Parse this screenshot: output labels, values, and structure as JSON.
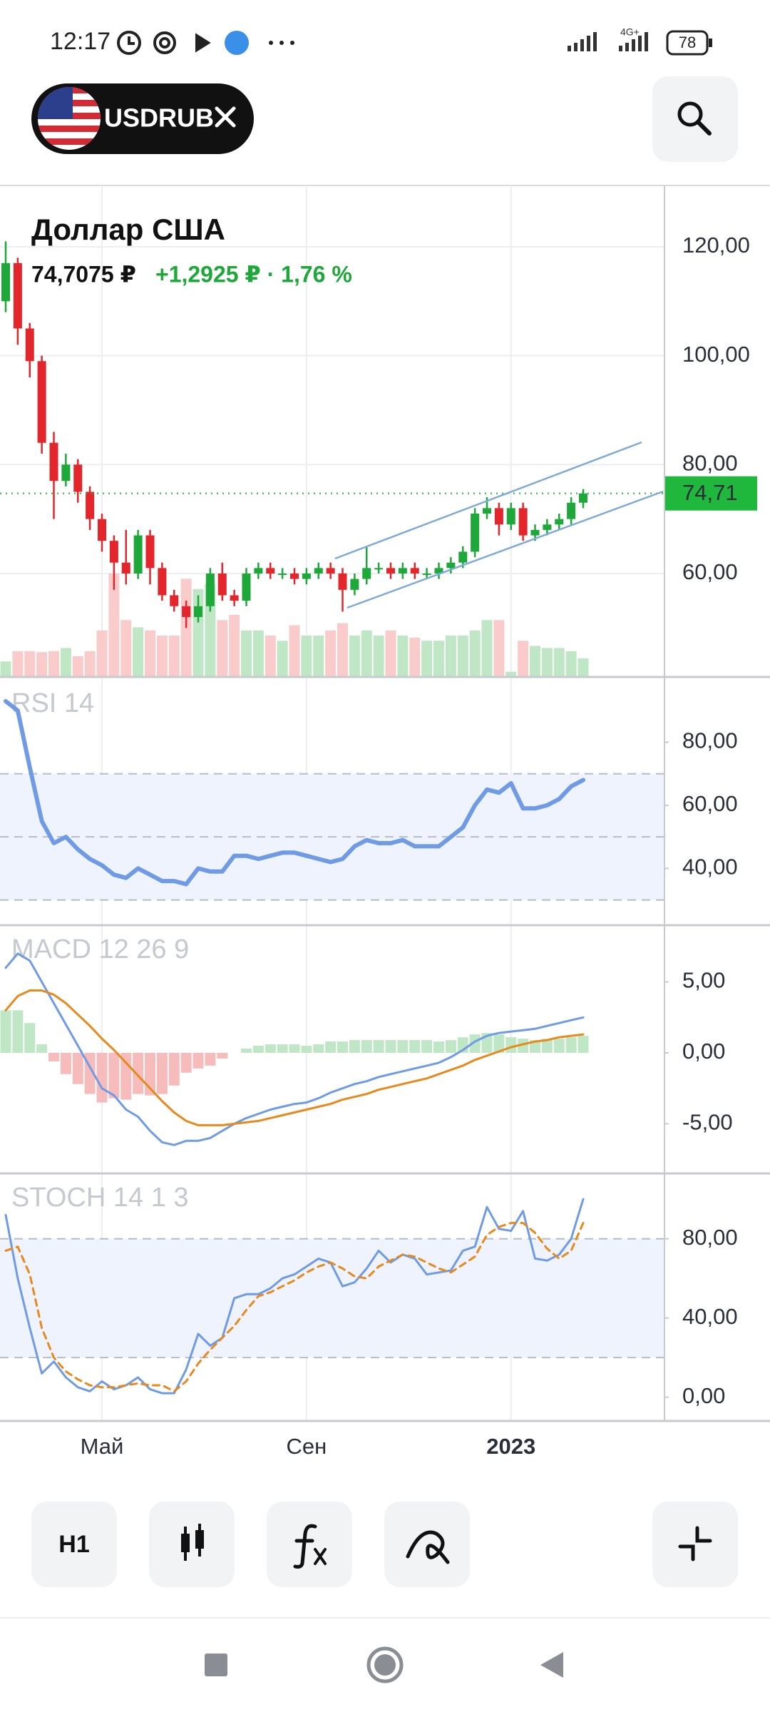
{
  "status_bar": {
    "time": "12:17",
    "network": "4G+",
    "battery": "78"
  },
  "symbol": "USDRUB",
  "instrument": {
    "name": "Доллар США",
    "price": "74,7075 ₽",
    "change": "+1,2925 ₽ · 1,76 %"
  },
  "toolbar": {
    "interval": "H1"
  },
  "chart_data": [
    {
      "type": "candlestick",
      "categories": [
        null,
        null,
        null,
        null,
        null,
        null,
        null,
        null,
        "Май",
        null,
        null,
        null,
        null,
        null,
        null,
        null,
        null,
        null,
        null,
        null,
        null,
        null,
        null,
        null,
        null,
        "Сен",
        null,
        null,
        null,
        null,
        null,
        null,
        null,
        null,
        null,
        null,
        null,
        null,
        null,
        null,
        null,
        null,
        "2023",
        null,
        null,
        null,
        null,
        null,
        null
      ],
      "ohlc": [
        [
          110,
          121,
          108,
          117
        ],
        [
          117,
          118,
          102,
          105
        ],
        [
          105,
          106,
          96,
          99
        ],
        [
          99,
          100,
          82,
          84
        ],
        [
          84,
          86,
          70,
          77
        ],
        [
          77,
          82,
          76,
          80
        ],
        [
          80,
          81,
          73,
          75
        ],
        [
          75,
          76,
          68,
          70
        ],
        [
          70,
          71,
          64,
          66
        ],
        [
          66,
          67,
          57,
          62
        ],
        [
          62,
          68,
          58,
          60
        ],
        [
          60,
          68,
          59,
          67
        ],
        [
          67,
          68,
          58,
          61
        ],
        [
          61,
          62,
          55,
          56
        ],
        [
          56,
          57,
          53,
          54
        ],
        [
          54,
          55,
          50,
          52
        ],
        [
          52,
          56,
          51,
          54
        ],
        [
          54,
          61,
          53,
          60
        ],
        [
          60,
          62,
          55,
          56
        ],
        [
          56,
          57,
          54,
          55
        ],
        [
          55,
          61,
          54,
          60
        ],
        [
          60,
          62,
          59,
          61
        ],
        [
          61,
          62,
          59,
          60
        ],
        [
          60,
          61,
          59,
          60
        ],
        [
          60,
          61,
          58,
          59
        ],
        [
          59,
          61,
          58,
          60
        ],
        [
          60,
          62,
          59,
          61
        ],
        [
          61,
          62,
          59,
          60
        ],
        [
          60,
          61,
          53,
          57
        ],
        [
          57,
          60,
          56,
          59
        ],
        [
          59,
          65,
          58,
          61
        ],
        [
          61,
          62,
          60,
          61
        ],
        [
          61,
          62,
          59,
          60
        ],
        [
          60,
          62,
          59,
          61
        ],
        [
          61,
          62,
          59,
          60
        ],
        [
          60,
          61,
          59,
          60
        ],
        [
          60,
          62,
          59,
          61
        ],
        [
          61,
          63,
          60,
          62
        ],
        [
          62,
          65,
          61,
          64
        ],
        [
          64,
          72,
          63,
          71
        ],
        [
          71,
          74,
          70,
          72
        ],
        [
          72,
          73,
          67,
          69
        ],
        [
          69,
          73,
          68,
          72
        ],
        [
          72,
          73,
          66,
          67
        ],
        [
          67,
          69,
          66,
          68
        ],
        [
          68,
          70,
          67,
          69
        ],
        [
          69,
          71,
          68,
          70
        ],
        [
          70,
          74,
          69,
          73
        ],
        [
          73,
          75.5,
          72,
          74.7075
        ]
      ],
      "volume": [
        15,
        25,
        25,
        24,
        25,
        28,
        20,
        25,
        45,
        100,
        55,
        48,
        45,
        40,
        40,
        95,
        85,
        90,
        55,
        60,
        45,
        45,
        40,
        35,
        50,
        40,
        40,
        45,
        52,
        40,
        45,
        40,
        45,
        40,
        38,
        35,
        35,
        40,
        40,
        45,
        55,
        55,
        5,
        35,
        30,
        28,
        28,
        25,
        18
      ],
      "up_color": "#1fa83a",
      "down_color": "#e3262b",
      "volume_up_color": "#bfe7c5",
      "volume_down_color": "#f9cbcb",
      "ylim": [
        41,
        131
      ],
      "yticks": [
        {
          "value": 60,
          "label": "60,00"
        },
        {
          "value": 80,
          "label": "80,00"
        },
        {
          "value": 100,
          "label": "100,00"
        },
        {
          "value": 120,
          "label": "120,00"
        }
      ],
      "grid": true,
      "last_price": {
        "value": 74.71,
        "label": "74,71",
        "color": "#1fb83c"
      }
    },
    {
      "type": "line",
      "title": "RSI 14",
      "series": [
        {
          "color": "#6f9be6",
          "values": [
            93,
            90,
            72,
            55,
            48,
            50,
            46,
            43,
            41,
            38,
            37,
            40,
            38,
            36,
            36,
            35,
            40,
            39,
            39,
            44,
            44,
            43,
            44,
            45,
            45,
            44,
            43,
            42,
            43,
            47,
            49,
            48,
            48,
            49,
            47,
            47,
            47,
            50,
            53,
            60,
            65,
            64,
            67,
            59,
            59,
            60,
            62,
            66,
            68
          ],
          "width": 6
        }
      ],
      "ylim": [
        22,
        100
      ],
      "yticks": [
        {
          "value": 40,
          "label": "40,00"
        },
        {
          "value": 60,
          "label": "60,00"
        },
        {
          "value": 80,
          "label": "80,00"
        }
      ],
      "levels": [
        30,
        50,
        70
      ]
    },
    {
      "type": "line",
      "title": "MACD 12 26 9",
      "series": [
        {
          "color": "#6f9be6",
          "values": [
            6,
            7,
            6.5,
            5,
            3.5,
            2,
            0.5,
            -1,
            -2.5,
            -3,
            -4,
            -4.5,
            -5.5,
            -6.3,
            -6.5,
            -6.2,
            -6.2,
            -6,
            -5.5,
            -5,
            -4.6,
            -4.3,
            -4,
            -3.8,
            -3.6,
            -3.5,
            -3.2,
            -2.8,
            -2.5,
            -2.2,
            -2,
            -1.7,
            -1.5,
            -1.3,
            -1.1,
            -0.9,
            -0.7,
            -0.3,
            0.2,
            0.8,
            1.2,
            1.4,
            1.5,
            1.6,
            1.7,
            1.9,
            2.1,
            2.3,
            2.5
          ],
          "width": 3
        },
        {
          "color": "#e8891c",
          "values": [
            3,
            4,
            4.4,
            4.4,
            4.1,
            3.5,
            2.7,
            1.9,
            1,
            0.2,
            -0.7,
            -1.6,
            -2.5,
            -3.4,
            -4.2,
            -4.8,
            -5.1,
            -5.1,
            -5.1,
            -5,
            -4.9,
            -4.8,
            -4.6,
            -4.4,
            -4.2,
            -4,
            -3.8,
            -3.6,
            -3.3,
            -3.1,
            -2.9,
            -2.6,
            -2.4,
            -2.2,
            -2,
            -1.8,
            -1.5,
            -1.2,
            -0.9,
            -0.5,
            -0.2,
            0.1,
            0.4,
            0.6,
            0.8,
            0.9,
            1.1,
            1.2,
            1.3
          ],
          "width": 3
        }
      ],
      "histogram": [
        3,
        3,
        2.1,
        0.6,
        -0.6,
        -1.5,
        -2.2,
        -2.9,
        -3.5,
        -3.2,
        -3.3,
        -2.9,
        -3,
        -2.9,
        -2.3,
        -1.4,
        -1.1,
        -0.9,
        -0.4,
        0,
        0.3,
        0.5,
        0.6,
        0.6,
        0.6,
        0.5,
        0.6,
        0.8,
        0.8,
        0.9,
        0.9,
        0.9,
        0.9,
        0.9,
        0.9,
        0.9,
        0.8,
        0.9,
        1.1,
        1.3,
        1.4,
        1.3,
        1.1,
        1,
        0.9,
        1,
        1,
        1.1,
        1.2
      ],
      "histogram_up_color": "#bfe7c5",
      "histogram_down_color": "#f6bcbc",
      "ylim": [
        -8.5,
        9
      ],
      "yticks": [
        {
          "value": -5,
          "label": "-5,00"
        },
        {
          "value": 0,
          "label": "0,00"
        },
        {
          "value": 5,
          "label": "5,00"
        }
      ]
    },
    {
      "type": "line",
      "title": "STOCH 14 1 3",
      "series": [
        {
          "color": "#6f9be6",
          "values": [
            92,
            60,
            35,
            12,
            18,
            10,
            5,
            3,
            8,
            4,
            6,
            10,
            4,
            2,
            2,
            14,
            32,
            26,
            30,
            50,
            52,
            52,
            55,
            60,
            62,
            66,
            70,
            68,
            56,
            58,
            65,
            74,
            68,
            72,
            70,
            62,
            63,
            64,
            74,
            76,
            96,
            85,
            84,
            94,
            70,
            69,
            72,
            80,
            100
          ],
          "width": 3
        },
        {
          "color": "#e8891c",
          "values": [
            74,
            76,
            62,
            35,
            20,
            13,
            9,
            6,
            5,
            5,
            6,
            7,
            6,
            6,
            3,
            8,
            17,
            24,
            30,
            36,
            44,
            51,
            53,
            56,
            59,
            63,
            66,
            68,
            65,
            61,
            60,
            66,
            69,
            72,
            71,
            68,
            65,
            63,
            67,
            71,
            82,
            86,
            88,
            88,
            83,
            75,
            70,
            74,
            88
          ],
          "width": 3,
          "line_style": "dashed"
        }
      ],
      "ylim": [
        -12,
        113
      ],
      "yticks": [
        {
          "value": 0,
          "label": "0,00"
        },
        {
          "value": 40,
          "label": "40,00"
        },
        {
          "value": 80,
          "label": "80,00"
        }
      ],
      "levels": [
        20,
        80
      ]
    }
  ]
}
